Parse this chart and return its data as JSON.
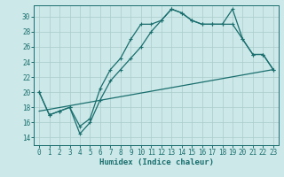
{
  "xlabel": "Humidex (Indice chaleur)",
  "bg_color": "#cce8e8",
  "grid_color": "#aacccc",
  "line_color": "#1a6e6e",
  "xlim": [
    -0.5,
    23.5
  ],
  "ylim": [
    13.0,
    31.5
  ],
  "xticks": [
    0,
    1,
    2,
    3,
    4,
    5,
    6,
    7,
    8,
    9,
    10,
    11,
    12,
    13,
    14,
    15,
    16,
    17,
    18,
    19,
    20,
    21,
    22,
    23
  ],
  "yticks": [
    14,
    16,
    18,
    20,
    22,
    24,
    26,
    28,
    30
  ],
  "line1_x": [
    0,
    1,
    2,
    3,
    4,
    5,
    6,
    7,
    8,
    9,
    10,
    11,
    12,
    13,
    14,
    15,
    16,
    17,
    18,
    19,
    20,
    21,
    22,
    23
  ],
  "line1_y": [
    20,
    17,
    17.5,
    18,
    15.5,
    16.5,
    20.5,
    23.0,
    24.5,
    27.0,
    29.0,
    29.0,
    29.5,
    31.0,
    30.5,
    29.5,
    29.0,
    29.0,
    29.0,
    31.0,
    27.0,
    25.0,
    25.0,
    23.0
  ],
  "line2_x": [
    0,
    1,
    2,
    3,
    4,
    5,
    6,
    7,
    8,
    9,
    10,
    11,
    12,
    13,
    14,
    15,
    16,
    17,
    18,
    19,
    20,
    21,
    22,
    23
  ],
  "line2_y": [
    20,
    17,
    17.5,
    18,
    14.5,
    16.0,
    19.0,
    21.5,
    23.0,
    24.5,
    26.0,
    28.0,
    29.5,
    31.0,
    30.5,
    29.5,
    29.0,
    29.0,
    29.0,
    29.0,
    27.0,
    25.0,
    25.0,
    23.0
  ],
  "line3_x": [
    0,
    23
  ],
  "line3_y": [
    17.5,
    23.0
  ]
}
